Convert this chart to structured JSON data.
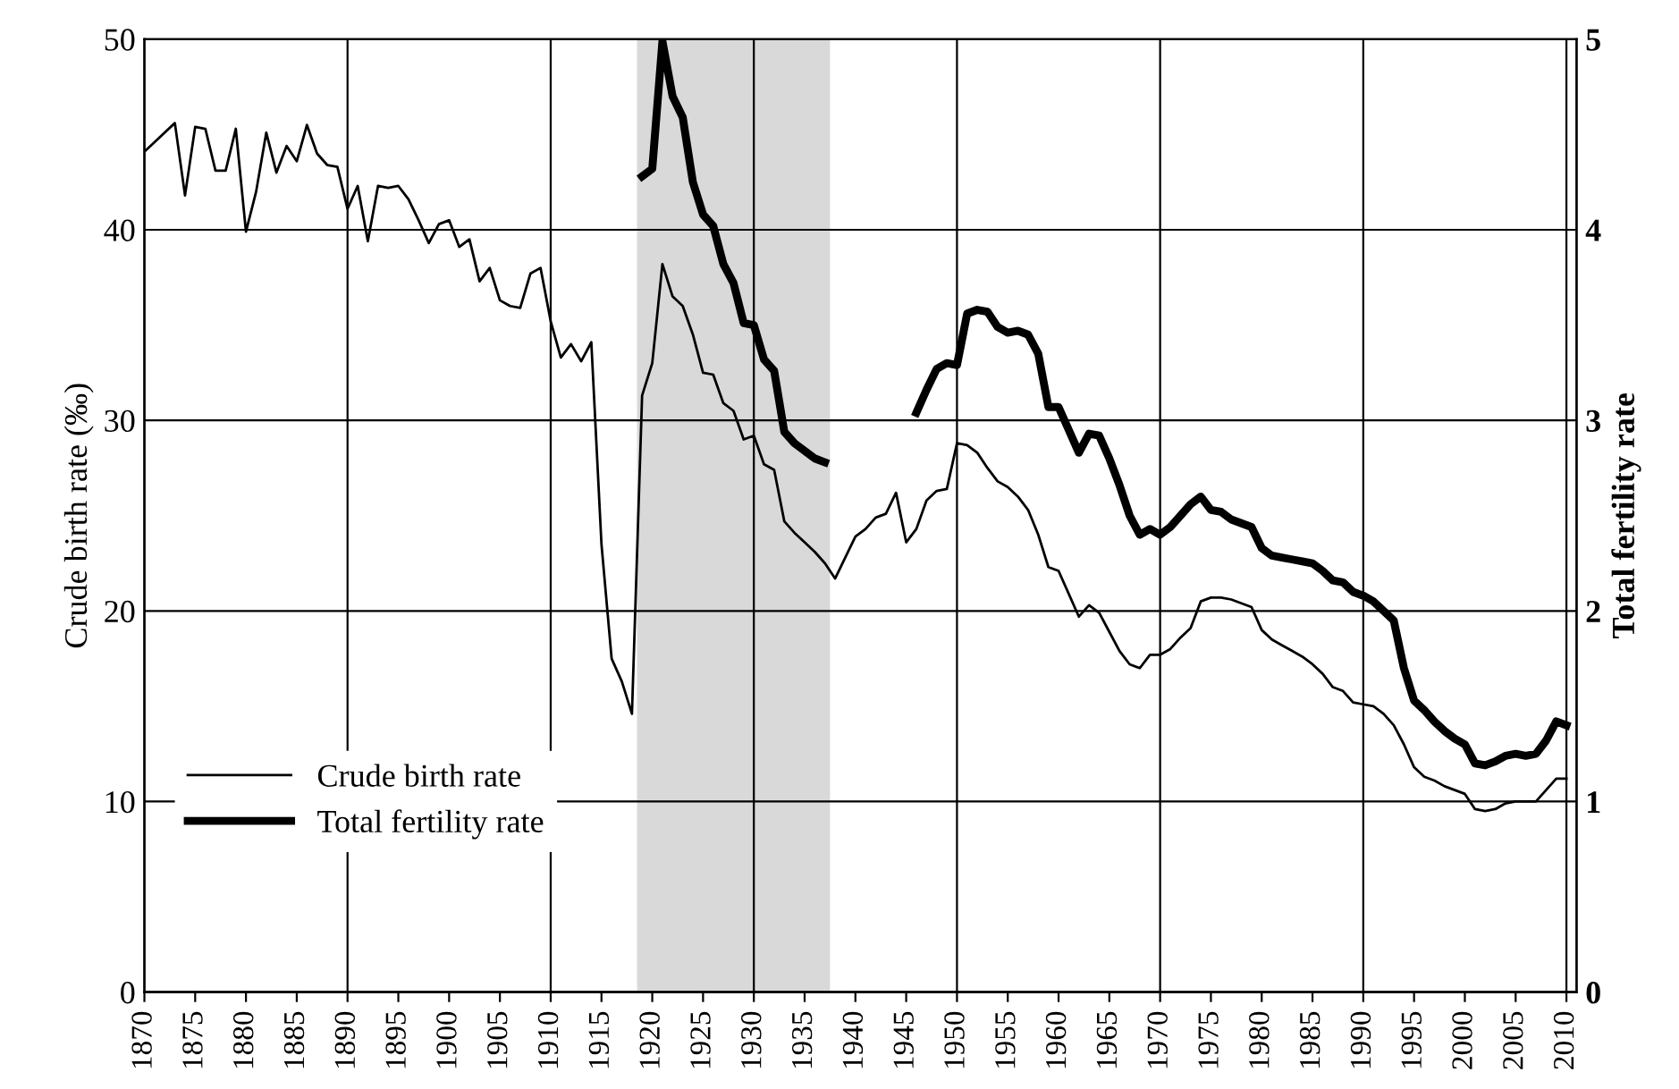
{
  "chart_data": {
    "type": "line",
    "ylabel": "Crude birth rate (‰)",
    "y2label": "Total fertility rate",
    "x": [
      1870,
      1871,
      1872,
      1873,
      1874,
      1875,
      1876,
      1877,
      1878,
      1879,
      1880,
      1881,
      1882,
      1883,
      1884,
      1885,
      1886,
      1887,
      1888,
      1889,
      1890,
      1891,
      1892,
      1893,
      1894,
      1895,
      1896,
      1897,
      1898,
      1899,
      1900,
      1901,
      1902,
      1903,
      1904,
      1905,
      1906,
      1907,
      1908,
      1909,
      1910,
      1911,
      1912,
      1913,
      1914,
      1915,
      1916,
      1917,
      1918,
      1919,
      1920,
      1921,
      1922,
      1923,
      1924,
      1925,
      1926,
      1927,
      1928,
      1929,
      1930,
      1931,
      1932,
      1933,
      1934,
      1935,
      1936,
      1937,
      1938,
      1939,
      1940,
      1941,
      1942,
      1943,
      1944,
      1945,
      1946,
      1947,
      1948,
      1949,
      1950,
      1951,
      1952,
      1953,
      1954,
      1955,
      1956,
      1957,
      1958,
      1959,
      1960,
      1961,
      1962,
      1963,
      1964,
      1965,
      1966,
      1967,
      1968,
      1969,
      1970,
      1971,
      1972,
      1973,
      1974,
      1975,
      1976,
      1977,
      1978,
      1979,
      1980,
      1981,
      1982,
      1983,
      1984,
      1985,
      1986,
      1987,
      1988,
      1989,
      1990,
      1991,
      1992,
      1993,
      1994,
      1995,
      1996,
      1997,
      1998,
      1999,
      2000,
      2001,
      2002,
      2003,
      2004,
      2005,
      2006,
      2007,
      2008,
      2009,
      2010
    ],
    "series": [
      {
        "name": "Crude birth rate",
        "color": "#000000",
        "values": [
          44.1,
          44.6,
          45.1,
          45.6,
          41.8,
          45.4,
          45.3,
          43.1,
          43.1,
          45.3,
          39.9,
          42.0,
          45.1,
          43.0,
          44.4,
          43.6,
          45.5,
          44.0,
          43.4,
          43.3,
          41.1,
          42.3,
          39.4,
          42.3,
          42.2,
          42.3,
          41.6,
          40.5,
          39.3,
          40.3,
          40.5,
          39.1,
          39.5,
          37.3,
          38.0,
          36.3,
          36.0,
          35.9,
          37.7,
          38.0,
          35.2,
          33.3,
          34.0,
          33.1,
          34.1,
          23.5,
          17.5,
          16.3,
          14.6,
          31.3,
          33.0,
          38.2,
          36.5,
          36.0,
          34.5,
          32.5,
          32.4,
          30.9,
          30.5,
          29.0,
          29.2,
          27.7,
          27.4,
          24.7,
          24.1,
          23.6,
          23.1,
          22.5,
          21.7,
          22.8,
          23.9,
          24.3,
          24.9,
          25.1,
          26.2,
          23.6,
          24.3,
          25.8,
          26.3,
          26.4,
          28.8,
          28.7,
          28.3,
          27.5,
          26.8,
          26.5,
          26.0,
          25.3,
          24.0,
          22.3,
          22.1,
          20.9,
          19.7,
          20.3,
          19.9,
          18.9,
          17.9,
          17.2,
          17.0,
          17.7,
          17.7,
          18.0,
          18.6,
          19.1,
          20.5,
          20.7,
          20.7,
          20.6,
          20.4,
          20.2,
          19.0,
          18.5,
          18.2,
          17.9,
          17.6,
          17.2,
          16.7,
          16.0,
          15.8,
          15.2,
          15.1,
          15.0,
          14.6,
          14.0,
          13.0,
          11.8,
          11.3,
          11.1,
          10.8,
          10.6,
          10.4,
          9.6,
          9.5,
          9.6,
          9.9,
          10.0,
          10.0,
          10.0,
          10.6,
          11.2,
          11.2
        ]
      },
      {
        "name": "Total fertility rate",
        "color": "#000000",
        "axis": "y2",
        "values": [
          null,
          null,
          null,
          null,
          null,
          null,
          null,
          null,
          null,
          null,
          null,
          null,
          null,
          null,
          null,
          null,
          null,
          null,
          null,
          null,
          null,
          null,
          null,
          null,
          null,
          null,
          null,
          null,
          null,
          null,
          null,
          null,
          null,
          null,
          null,
          null,
          null,
          null,
          null,
          null,
          null,
          null,
          null,
          null,
          null,
          null,
          null,
          null,
          null,
          4.28,
          4.32,
          4.99,
          4.7,
          4.59,
          4.25,
          4.08,
          4.02,
          3.82,
          3.72,
          3.51,
          3.5,
          3.32,
          3.26,
          2.94,
          2.88,
          2.84,
          2.8,
          2.78,
          null,
          null,
          null,
          null,
          null,
          null,
          null,
          null,
          3.04,
          3.16,
          3.27,
          3.3,
          3.29,
          3.56,
          3.58,
          3.57,
          3.49,
          3.46,
          3.47,
          3.45,
          3.35,
          3.07,
          3.07,
          2.95,
          2.83,
          2.93,
          2.92,
          2.8,
          2.66,
          2.5,
          2.4,
          2.43,
          2.4,
          2.44,
          2.5,
          2.56,
          2.6,
          2.53,
          2.52,
          2.48,
          2.46,
          2.44,
          2.33,
          2.29,
          2.28,
          2.27,
          2.26,
          2.25,
          2.21,
          2.16,
          2.15,
          2.1,
          2.08,
          2.05,
          2.0,
          1.95,
          1.7,
          1.53,
          1.48,
          1.42,
          1.37,
          1.33,
          1.3,
          1.2,
          1.19,
          1.21,
          1.24,
          1.25,
          1.24,
          1.25,
          1.32,
          1.42,
          1.4
        ]
      }
    ],
    "xlim": [
      1870,
      2011
    ],
    "xticks": [
      1870,
      1875,
      1880,
      1885,
      1890,
      1895,
      1900,
      1905,
      1910,
      1915,
      1920,
      1925,
      1930,
      1935,
      1940,
      1945,
      1950,
      1955,
      1960,
      1965,
      1970,
      1975,
      1980,
      1985,
      1990,
      1995,
      2000,
      2005,
      2010
    ],
    "ylim": [
      0,
      50
    ],
    "yticks": [
      0,
      10,
      20,
      30,
      40,
      50
    ],
    "y2lim": [
      0,
      5
    ],
    "y2ticks": [
      0,
      1,
      2,
      3,
      4,
      5
    ],
    "grid": "y",
    "ref_lines": [
      {
        "axis": "x",
        "value": 1890,
        "color": "#000000"
      },
      {
        "axis": "x",
        "value": 1910,
        "color": "#000000"
      },
      {
        "axis": "x",
        "value": 1930,
        "color": "#000000"
      },
      {
        "axis": "x",
        "value": 1950,
        "color": "#000000"
      },
      {
        "axis": "x",
        "value": 1970,
        "color": "#000000"
      },
      {
        "axis": "x",
        "value": 1990,
        "color": "#000000"
      },
      {
        "axis": "x",
        "value": 2010,
        "color": "#000000"
      }
    ],
    "bands": [
      {
        "axis": "x",
        "from": 1918.5,
        "to": 1937.5,
        "color": "#d9d9d9"
      }
    ],
    "legend": "bottom left",
    "marker": "none",
    "line_style": "solid"
  }
}
